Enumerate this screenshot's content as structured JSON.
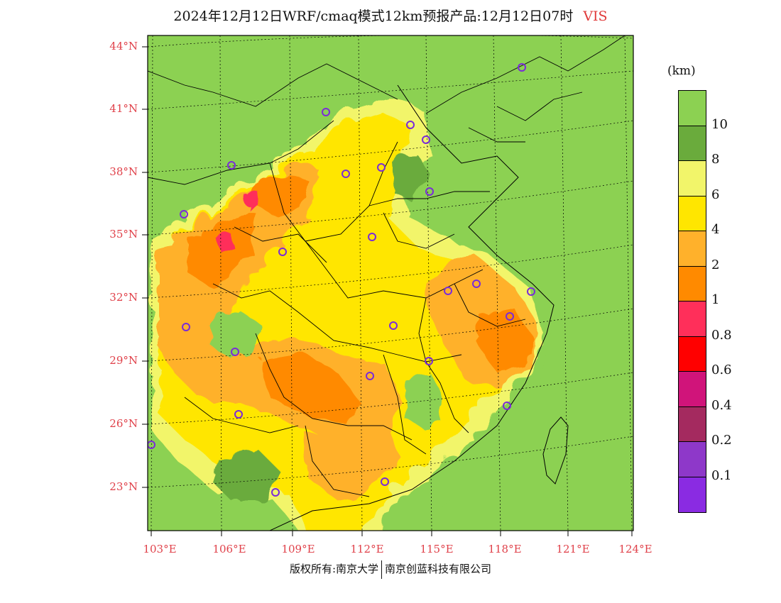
{
  "title": {
    "main": "2024年12月12日WRF/cmaq模式12km预报产品:12月12日07时",
    "variable": "VIS"
  },
  "colorbar": {
    "unit": "(km)",
    "colors": [
      "#8cd152",
      "#6aab3c",
      "#f2f56a",
      "#ffe600",
      "#ffb12b",
      "#ff8a00",
      "#ff2f5a",
      "#ff0000",
      "#d0147a",
      "#a42a5f",
      "#8e38c9",
      "#8a2be2"
    ],
    "labels": [
      "10",
      "8",
      "6",
      "4",
      "2",
      "1",
      "0.8",
      "0.6",
      "0.4",
      "0.2",
      "0.1"
    ]
  },
  "axes": {
    "lat_labels": [
      "44°N",
      "41°N",
      "38°N",
      "35°N",
      "32°N",
      "29°N",
      "26°N",
      "23°N"
    ],
    "lon_labels": [
      "103°E",
      "106°E",
      "109°E",
      "112°E",
      "115°E",
      "118°E",
      "121°E",
      "124°E"
    ]
  },
  "footer": {
    "left": "版权所有:南京大学",
    "right": "南京创蓝科技有限公司"
  }
}
